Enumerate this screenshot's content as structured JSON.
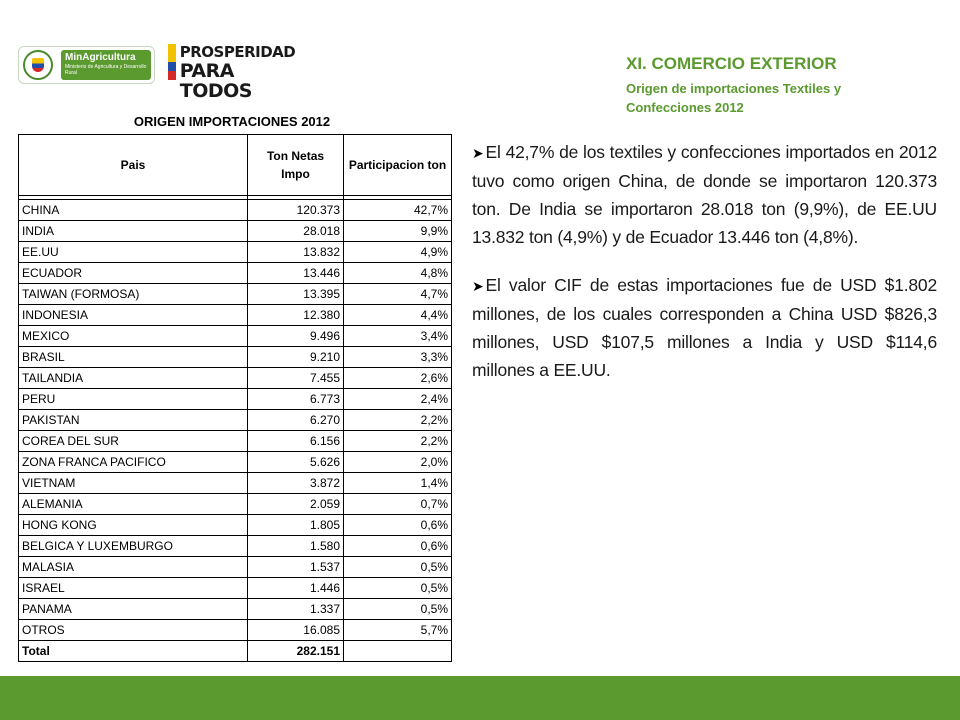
{
  "logos": {
    "ministry_title": "MinAgricultura",
    "ministry_sub": "Ministerio de Agricultura y Desarrollo Rural",
    "prosperidad_line1": "PROSPERIDAD",
    "prosperidad_line2": "PARA TODOS"
  },
  "header": {
    "title": "XI. COMERCIO EXTERIOR",
    "subtitle": "Origen de importaciones Textiles y Confecciones 2012"
  },
  "table": {
    "title": "ORIGEN IMPORTACIONES 2012",
    "headers": {
      "country": "Pais",
      "tons": "Ton Netas Impo",
      "share": "Participacion ton"
    },
    "rows": [
      {
        "country": "CHINA",
        "tons": "120.373",
        "share": "42,7%"
      },
      {
        "country": "INDIA",
        "tons": "28.018",
        "share": "9,9%"
      },
      {
        "country": "EE.UU",
        "tons": "13.832",
        "share": "4,9%"
      },
      {
        "country": "ECUADOR",
        "tons": "13.446",
        "share": "4,8%"
      },
      {
        "country": "TAIWAN (FORMOSA)",
        "tons": "13.395",
        "share": "4,7%"
      },
      {
        "country": "INDONESIA",
        "tons": "12.380",
        "share": "4,4%"
      },
      {
        "country": "MEXICO",
        "tons": "9.496",
        "share": "3,4%"
      },
      {
        "country": "BRASIL",
        "tons": "9.210",
        "share": "3,3%"
      },
      {
        "country": "TAILANDIA",
        "tons": "7.455",
        "share": "2,6%"
      },
      {
        "country": "PERU",
        "tons": "6.773",
        "share": "2,4%"
      },
      {
        "country": "PAKISTAN",
        "tons": "6.270",
        "share": "2,2%"
      },
      {
        "country": "COREA DEL SUR",
        "tons": "6.156",
        "share": "2,2%"
      },
      {
        "country": "ZONA FRANCA PACIFICO",
        "tons": "5.626",
        "share": "2,0%"
      },
      {
        "country": "VIETNAM",
        "tons": "3.872",
        "share": "1,4%"
      },
      {
        "country": "ALEMANIA",
        "tons": "2.059",
        "share": "0,7%"
      },
      {
        "country": "HONG KONG",
        "tons": "1.805",
        "share": "0,6%"
      },
      {
        "country": "BELGICA Y LUXEMBURGO",
        "tons": "1.580",
        "share": "0,6%"
      },
      {
        "country": "MALASIA",
        "tons": "1.537",
        "share": "0,5%"
      },
      {
        "country": "ISRAEL",
        "tons": "1.446",
        "share": "0,5%"
      },
      {
        "country": "PANAMA",
        "tons": "1.337",
        "share": "0,5%"
      },
      {
        "country": "OTROS",
        "tons": "16.085",
        "share": "5,7%"
      }
    ],
    "total": {
      "label": "Total",
      "tons": "282.151",
      "share": ""
    }
  },
  "bullets": [
    "El 42,7% de los textiles y confecciones importados en 2012 tuvo como origen China, de donde se importaron 120.373 ton. De India se importaron 28.018 ton (9,9%), de EE.UU 13.832 ton (4,9%) y de Ecuador 13.446 ton (4,8%).",
    "El valor CIF de estas importaciones fue de USD $1.802 millones, de los cuales corresponden a China USD $826,3 millones, USD $107,5 millones a India y USD $114,6 millones a EE.UU."
  ],
  "colors": {
    "brand_green": "#5a9a2e"
  },
  "icons": {
    "bullet": "arrow-bullet-icon"
  }
}
